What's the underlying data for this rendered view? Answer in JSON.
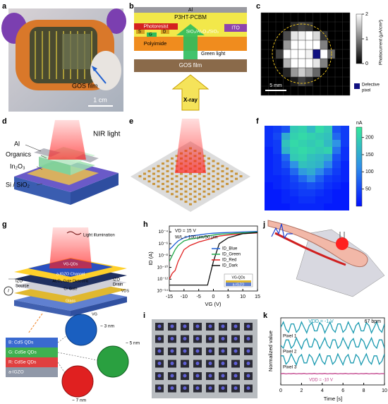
{
  "panels": {
    "a": {
      "label": "a",
      "film": "GOS film",
      "scale": "1 cm"
    },
    "b": {
      "label": "b",
      "al": "Al",
      "p3ht": "P3HT-PCBM",
      "photoresist": "Photoresist",
      "s": "S",
      "g": "G",
      "d": "D",
      "dielectric": "SiO₂/Al₂O₃/SiO₂",
      "ito": "ITO",
      "polyimide": "Polyimide",
      "green": "Green light",
      "gos": "GOS film",
      "xray": "X-ray"
    },
    "c": {
      "label": "c",
      "colorbar_label": "Photocurrent (μA/cm²)",
      "clim": [
        0,
        2
      ],
      "cticks": [
        0,
        1,
        2
      ],
      "scale": "5 mm",
      "defective": "Defective",
      "pixel": "pixel",
      "values": [
        [
          0,
          0,
          0,
          0,
          0,
          0,
          0,
          0,
          0,
          0,
          0,
          0
        ],
        [
          0,
          0,
          0,
          0,
          0.3,
          0.5,
          0.4,
          0,
          0,
          0,
          0,
          0
        ],
        [
          0,
          0,
          0,
          0.6,
          1.8,
          1.9,
          2,
          1.7,
          0.4,
          0,
          0,
          0
        ],
        [
          0,
          0,
          0,
          1.2,
          2,
          2,
          2,
          2,
          1,
          0,
          0,
          0
        ],
        [
          0,
          0,
          0.5,
          2,
          2,
          2,
          1.9,
          null,
          2,
          0.8,
          0,
          0
        ],
        [
          0,
          0,
          0,
          1.4,
          2,
          2,
          2,
          1.8,
          1,
          0,
          0,
          0
        ],
        [
          0,
          0,
          0,
          0.3,
          1.2,
          1.6,
          1.3,
          0.8,
          0,
          0,
          0,
          0
        ],
        [
          0,
          0,
          0,
          0,
          0.2,
          0.5,
          0.3,
          0,
          0,
          0,
          0,
          0
        ],
        [
          0,
          0,
          0,
          0,
          0,
          0,
          0,
          0,
          0,
          0,
          0,
          0
        ]
      ]
    },
    "d": {
      "label": "d",
      "light": "NIR light",
      "al": "Al",
      "organics": "Organics",
      "in2o3": "In₂O₃",
      "si": "Si / SiO₂"
    },
    "e": {
      "label": "e"
    },
    "f": {
      "label": "f",
      "unit": "nA",
      "clim": [
        0,
        230
      ],
      "cticks": [
        50,
        100,
        150,
        200
      ],
      "values": [
        [
          30,
          40,
          60,
          190,
          200,
          170,
          210,
          190,
          60,
          40
        ],
        [
          30,
          50,
          150,
          200,
          210,
          200,
          190,
          180,
          80,
          40
        ],
        [
          30,
          40,
          180,
          210,
          200,
          190,
          200,
          170,
          120,
          40
        ],
        [
          20,
          40,
          160,
          200,
          210,
          200,
          190,
          200,
          90,
          30
        ],
        [
          20,
          30,
          80,
          190,
          200,
          180,
          170,
          150,
          60,
          30
        ],
        [
          20,
          30,
          60,
          120,
          180,
          170,
          160,
          110,
          50,
          20
        ],
        [
          20,
          30,
          40,
          80,
          130,
          150,
          110,
          70,
          40,
          20
        ],
        [
          20,
          20,
          30,
          50,
          80,
          110,
          70,
          40,
          30,
          20
        ],
        [
          10,
          20,
          30,
          40,
          50,
          60,
          50,
          30,
          20,
          10
        ],
        [
          10,
          10,
          20,
          30,
          40,
          40,
          30,
          20,
          10,
          10
        ],
        [
          10,
          10,
          20,
          20,
          30,
          30,
          20,
          20,
          10,
          10
        ],
        [
          10,
          10,
          10,
          20,
          20,
          20,
          20,
          10,
          10,
          10
        ]
      ]
    },
    "g": {
      "label": "g",
      "light": "Light illumination",
      "izo_s": "IZO",
      "source": "Source",
      "izo_d": "IZO",
      "drain": "Drain",
      "qds": "VG-QDs",
      "channel": "a-IGZO Channel",
      "dielectric": "Al₂O₃ Gate Dielectric",
      "gate": "Cr Gate",
      "glass": "Glass",
      "vds": "VDS",
      "vg": "VG",
      "current": "I",
      "blue": "B: CdS QDs",
      "green": "G: CdSe QDs",
      "red": "R: CdSe QDs",
      "igzo": "a-IGZO",
      "size_blue": "~ 3 nm",
      "size_green": "~ 5 nm",
      "size_red": "~ 7 nm"
    },
    "h": {
      "label": "h",
      "type": "line",
      "log_y": true,
      "xlabel": "VG (V)",
      "ylabel": "ID (A)",
      "vd": "VD = 15 V",
      "wl": "W/L = 100 μm/50 μm",
      "inset_qds": "VG-QDs",
      "inset_igzo": "a-IGZO",
      "xlim": [
        -15,
        15
      ],
      "xticks": [
        -15,
        -10,
        -5,
        0,
        5,
        10,
        15
      ],
      "ylim": [
        1e-14,
        0.001
      ],
      "yticks": [
        {
          "value": 1e-14,
          "label": "10⁻¹⁴"
        },
        {
          "value": 1e-12,
          "label": "10⁻¹²"
        },
        {
          "value": 1e-10,
          "label": "10⁻¹⁰"
        },
        {
          "value": 1e-08,
          "label": "10⁻⁸"
        },
        {
          "value": 1e-06,
          "label": "10⁻⁶"
        },
        {
          "value": 0.0001,
          "label": "10⁻⁴"
        }
      ],
      "x": [
        -15,
        -14,
        -13,
        -12,
        -10,
        -8,
        -5,
        -2,
        0,
        2,
        5,
        10,
        15
      ],
      "series": [
        {
          "name": "ID_Blue",
          "color": "#1f5fd6",
          "values": [
            1e-07,
            3e-07,
            1e-06,
            3e-06,
            1e-05,
            2e-05,
            3e-05,
            5e-05,
            6e-05,
            7e-05,
            8e-05,
            0.0001,
            0.00012
          ]
        },
        {
          "name": "ID_Green",
          "color": "#21a84a",
          "values": [
            1e-09,
            1e-08,
            1e-07,
            5e-07,
            3e-06,
            6e-06,
            1e-05,
            2e-05,
            3e-05,
            4e-05,
            5e-05,
            7e-05,
            9e-05
          ]
        },
        {
          "name": "ID_Red",
          "color": "#e02020",
          "values": [
            1e-12,
            1e-11,
            3e-11,
            1e-09,
            1e-07,
            5e-07,
            2e-06,
            5e-06,
            1e-05,
            2e-05,
            3e-05,
            5e-05,
            7e-05
          ]
        },
        {
          "name": "ID_Dark",
          "color": "#111111",
          "values": [
            1e-13,
            1e-13,
            1e-13,
            1e-13,
            1e-13,
            1e-13,
            1e-13,
            1e-13,
            1e-09,
            1e-06,
            1e-05,
            5e-05,
            8e-05
          ]
        }
      ]
    },
    "i": {
      "label": "i"
    },
    "j": {
      "label": "j"
    },
    "k": {
      "label": "k",
      "type": "line",
      "xlabel": "Time [s]",
      "ylabel": "Normalized value",
      "vdd1": "VDD = -1 V",
      "bpm": "67 bpm",
      "vdd10": "VDD = -10 V",
      "xlim": [
        0,
        10
      ],
      "xticks": [
        0,
        2,
        4,
        6,
        8,
        10
      ],
      "ylim": [
        -0.6,
        3.6
      ],
      "x": [
        0,
        0.25,
        0.5,
        0.75,
        1,
        1.25,
        1.5,
        1.75,
        2,
        2.25,
        2.5,
        2.75,
        3,
        3.25,
        3.5,
        3.75,
        4,
        4.25,
        4.5,
        4.75,
        5,
        5.25,
        5.5,
        5.75,
        6,
        6.25,
        6.5,
        6.75,
        7,
        7.25,
        7.5,
        7.75,
        8,
        8.25,
        8.5,
        8.75,
        9,
        9.25,
        9.5,
        9.75,
        10
      ],
      "series": [
        {
          "name": "Pixel 1",
          "color": "#1a9ab0",
          "values": [
            3,
            3.34,
            2.88,
            2.7,
            3.22,
            3.22,
            2.7,
            2.88,
            3.34,
            3,
            2.66,
            3.12,
            3.3,
            2.78,
            2.78,
            3.3,
            3.12,
            2.66,
            3,
            3.34,
            2.88,
            2.7,
            3.22,
            3.22,
            2.7,
            2.88,
            3.34,
            3,
            2.66,
            3.12,
            3.3,
            2.78,
            2.78,
            3.3,
            3.12,
            2.66,
            3,
            3.34,
            2.88,
            2.7,
            3.22
          ]
        },
        {
          "name": "Pixel 2",
          "color": "#1a9ab0",
          "values": [
            1.88,
            1.7,
            2.22,
            2.22,
            1.7,
            1.88,
            2.34,
            2,
            1.66,
            2.12,
            2.3,
            1.78,
            1.78,
            2.3,
            2.12,
            1.66,
            2,
            2.34,
            1.88,
            1.7,
            2.22,
            2.22,
            1.7,
            1.88,
            2.34,
            2,
            1.66,
            2.12,
            2.3,
            1.78,
            1.78,
            2.3,
            2.12,
            1.66,
            2,
            2.34,
            1.88,
            1.7,
            2.22,
            2.22,
            1.7
          ]
        },
        {
          "name": "Pixel 3",
          "color": "#1a9ab0",
          "values": [
            1.22,
            1.22,
            0.7,
            0.88,
            1.34,
            1,
            0.66,
            1.12,
            1.3,
            0.78,
            0.78,
            1.3,
            1.12,
            0.66,
            1,
            1.34,
            0.88,
            0.7,
            1.22,
            1.22,
            0.7,
            0.88,
            1.34,
            1,
            0.66,
            1.12,
            1.3,
            0.78,
            0.78,
            1.3,
            1.12,
            0.66,
            1,
            1.34,
            0.88,
            0.7,
            1.22,
            1.22,
            0.7,
            0.88,
            1.34
          ]
        },
        {
          "name": "VDD = -10 V",
          "color": "#c0408a",
          "values": [
            0.1,
            0.12,
            0.09,
            0.11,
            0.1,
            0.12,
            0.09,
            0.11,
            0.1,
            0.12,
            0.09,
            0.11,
            0.1,
            0.12,
            0.09,
            0.11,
            0.1,
            0.12,
            0.09,
            0.11,
            0.1,
            0.12,
            0.09,
            0.11,
            0.1,
            0.12,
            0.09,
            0.11,
            0.1,
            0.12,
            0.09,
            0.11,
            0.1,
            0.12,
            0.09,
            0.11,
            0.1,
            0.12,
            0.09,
            0.11,
            0.1
          ]
        }
      ]
    }
  }
}
